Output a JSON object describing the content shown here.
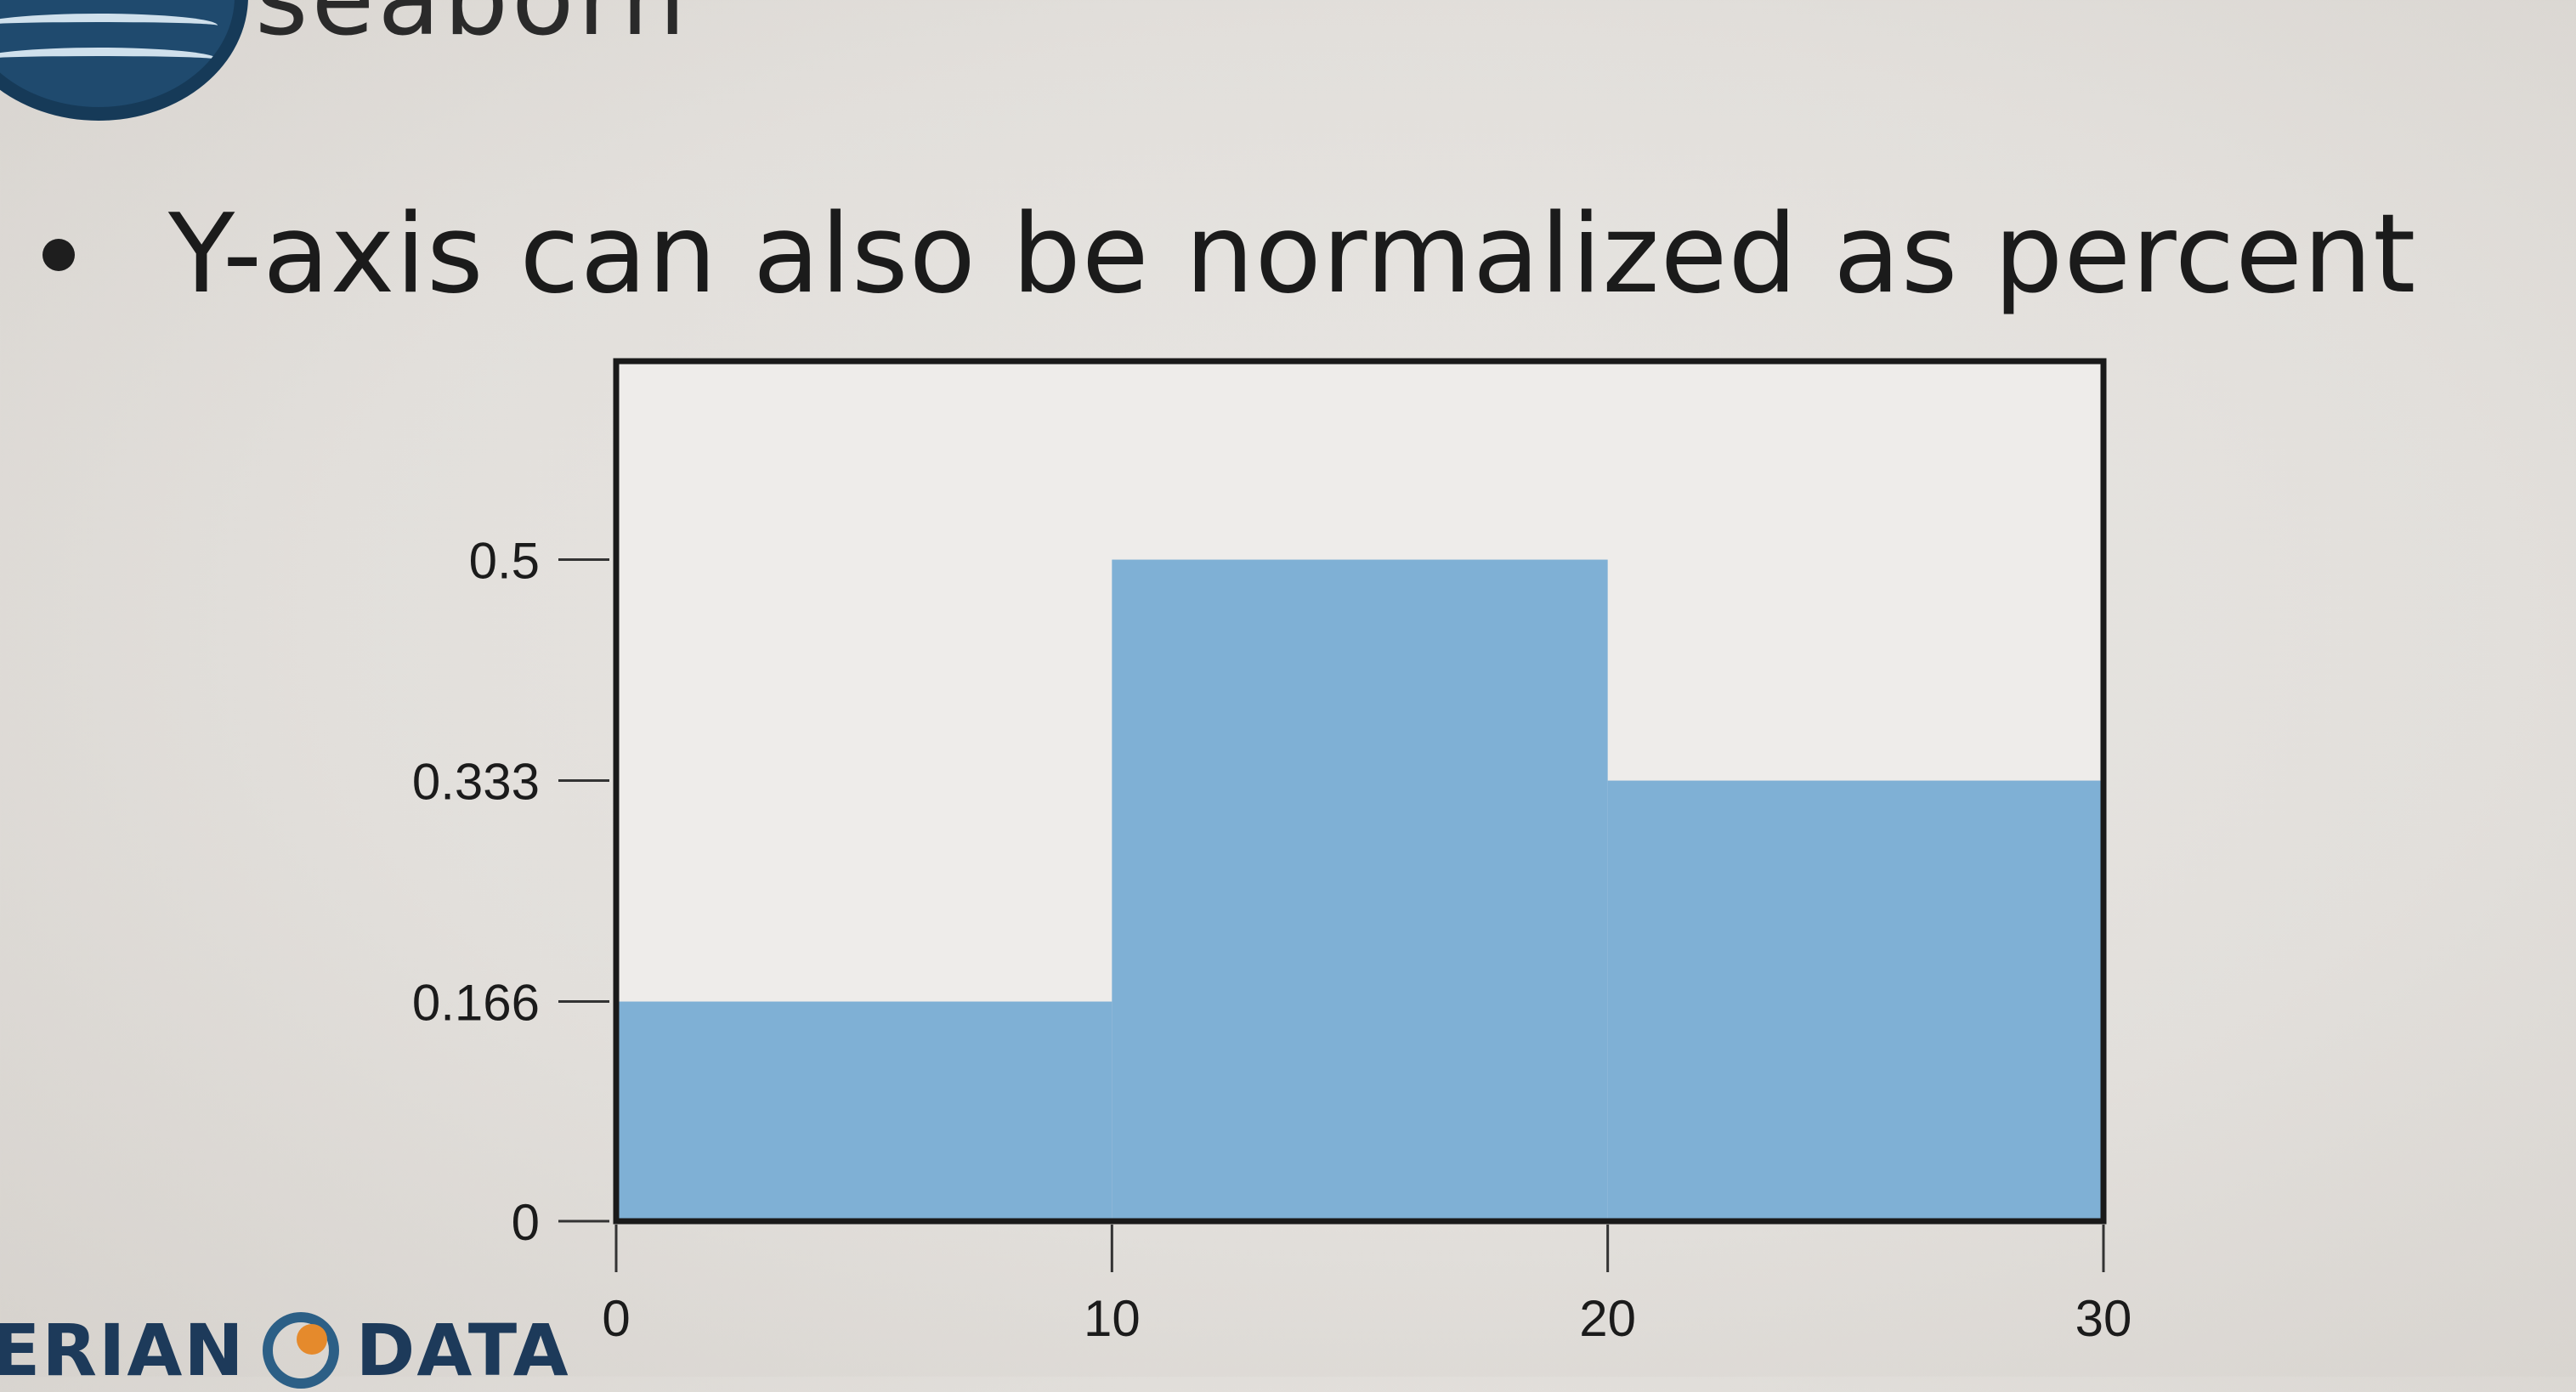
{
  "header": {
    "library_name": "seaborn"
  },
  "slide": {
    "bullet_text": "Y-axis can also be normalized as percent"
  },
  "footer": {
    "brand_left": "ERIAN",
    "brand_right": "DATA"
  },
  "colors": {
    "bar_fill": "#7fb0d5",
    "axis": "#1a1a1a",
    "text": "#1b1b1b"
  },
  "chart_data": {
    "type": "bar",
    "bins": [
      [
        0,
        10
      ],
      [
        10,
        20
      ],
      [
        20,
        30
      ]
    ],
    "values": [
      0.166,
      0.5,
      0.333
    ],
    "xticks": [
      0,
      10,
      20,
      30
    ],
    "yticks": [
      0,
      0.166,
      0.333,
      0.5
    ],
    "xlim": [
      0,
      30
    ],
    "ylim": [
      0,
      0.65
    ],
    "title": "",
    "xlabel": "",
    "ylabel": ""
  }
}
